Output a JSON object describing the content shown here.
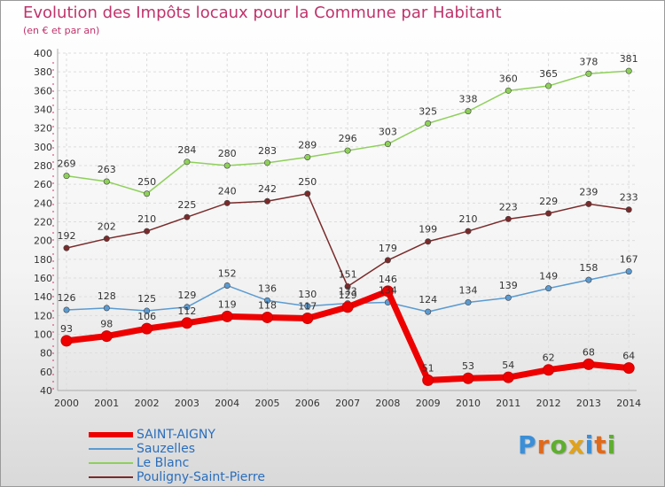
{
  "title": "Evolution des Impôts locaux pour la Commune par Habitant",
  "subtitle": "(en € et par an)",
  "logo_text": "Proxiti",
  "chart_data": {
    "type": "line",
    "title": "Evolution des Impôts locaux pour la Commune par Habitant",
    "subtitle": "(en € et par an)",
    "x": [
      "2000",
      "2001",
      "2002",
      "2003",
      "2004",
      "2005",
      "2006",
      "2007",
      "2008",
      "2009",
      "2010",
      "2011",
      "2012",
      "2013",
      "2014"
    ],
    "y_ticks": [
      "40",
      "60",
      "80",
      "100",
      "120",
      "140",
      "160",
      "180",
      "200",
      "220",
      "240",
      "260",
      "280",
      "300",
      "320",
      "340",
      "360",
      "380",
      "400"
    ],
    "ylim": [
      40,
      400
    ],
    "grid": true,
    "legend_position": "bottom-left",
    "series": [
      {
        "name": "SAINT-AIGNY",
        "color": "#ee0000",
        "emphasis": true,
        "values": [
          93,
          98,
          106,
          112,
          119,
          118,
          117,
          129,
          146,
          51,
          53,
          54,
          62,
          68,
          64
        ]
      },
      {
        "name": "Sauzelles",
        "color": "#5b9bd1",
        "values": [
          126,
          128,
          125,
          129,
          152,
          136,
          130,
          133,
          134,
          124,
          134,
          139,
          149,
          158,
          167
        ]
      },
      {
        "name": "Le Blanc",
        "color": "#8ed05a",
        "values": [
          269,
          263,
          250,
          284,
          280,
          283,
          289,
          296,
          303,
          325,
          338,
          360,
          365,
          378,
          381
        ]
      },
      {
        "name": "Pouligny-Saint-Pierre",
        "color": "#7a2a2a",
        "values": [
          192,
          202,
          210,
          225,
          240,
          242,
          250,
          151,
          179,
          199,
          210,
          223,
          229,
          239,
          233
        ]
      }
    ]
  }
}
